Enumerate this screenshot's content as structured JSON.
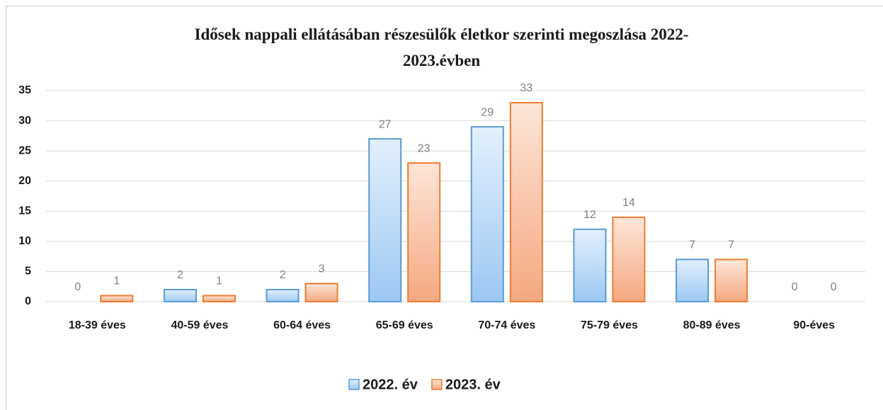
{
  "chart_data": {
    "type": "bar",
    "title": "Idősek nappali ellátásában részesülők életkor szerinti megoszlása 2022-2023.évben",
    "categories": [
      "18-39 éves",
      "40-59 éves",
      "60-64 éves",
      "65-69 éves",
      "70-74 éves",
      "75-79 éves",
      "80-89 éves",
      "90-éves"
    ],
    "series": [
      {
        "name": "2022. év",
        "color": "#5b9bd5",
        "values": [
          0,
          2,
          2,
          27,
          29,
          12,
          7,
          0
        ]
      },
      {
        "name": "2023. év",
        "color": "#ed7d31",
        "values": [
          1,
          1,
          3,
          23,
          33,
          14,
          7,
          0
        ]
      }
    ],
    "ylim": [
      0,
      35
    ],
    "yticks": [
      0,
      5,
      10,
      15,
      20,
      25,
      30,
      35
    ],
    "grid": true,
    "legend": "bottom"
  }
}
